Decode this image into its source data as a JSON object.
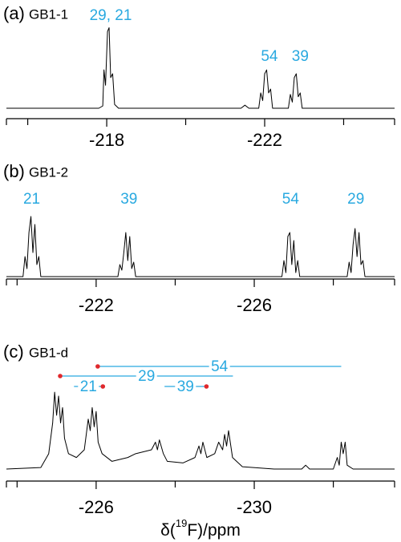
{
  "chart_data": [
    {
      "type": "line",
      "label": "(a)",
      "title": "GB1-1",
      "color": "#000000",
      "label_color": "#29a9e0",
      "xlim": [
        -215.46,
        -225.29
      ],
      "ylim": [
        0,
        115
      ],
      "xticks": [
        -218,
        -222
      ],
      "minor_xticks": [
        -216,
        -220,
        -224
      ],
      "x": [
        -215.46,
        -217.8,
        -217.9,
        -217.93,
        -217.97,
        -218.02,
        -218.06,
        -218.1,
        -218.15,
        -218.2,
        -218.3,
        -221.4,
        -221.5,
        -221.6,
        -221.85,
        -221.9,
        -221.95,
        -222.0,
        -222.05,
        -222.1,
        -222.15,
        -222.2,
        -222.6,
        -222.65,
        -222.7,
        -222.75,
        -222.8,
        -222.85,
        -222.9,
        -222.95,
        -225.29
      ],
      "values": [
        0,
        0,
        3,
        50,
        30,
        100,
        105,
        40,
        45,
        5,
        0,
        0,
        4,
        0,
        0,
        20,
        10,
        45,
        50,
        20,
        25,
        0,
        0,
        18,
        8,
        40,
        45,
        15,
        20,
        0,
        0
      ],
      "peak_labels": [
        {
          "text": "29, 21",
          "x": -218.1
        },
        {
          "text": "54",
          "x": -222.12
        },
        {
          "text": "39",
          "x": -222.9
        }
      ]
    },
    {
      "type": "line",
      "label": "(b)",
      "title": "GB1-2",
      "color": "#000000",
      "label_color": "#29a9e0",
      "xlim": [
        -219.73,
        -229.55
      ],
      "ylim": [
        0,
        100
      ],
      "xticks": [
        -222,
        -226
      ],
      "minor_xticks": [
        -220,
        -224,
        -228
      ],
      "x": [
        -219.73,
        -220.15,
        -220.2,
        -220.25,
        -220.3,
        -220.35,
        -220.4,
        -220.45,
        -220.5,
        -220.55,
        -220.6,
        -222.55,
        -222.6,
        -222.65,
        -222.7,
        -222.75,
        -222.8,
        -222.85,
        -222.9,
        -222.95,
        -223.0,
        -226.7,
        -226.75,
        -226.8,
        -226.85,
        -226.9,
        -226.95,
        -227.0,
        -227.05,
        -227.1,
        -227.15,
        -228.35,
        -228.4,
        -228.45,
        -228.5,
        -228.55,
        -228.6,
        -228.65,
        -228.7,
        -228.75,
        -228.8,
        -229.55
      ],
      "values": [
        0,
        0,
        25,
        10,
        55,
        75,
        30,
        65,
        15,
        25,
        0,
        0,
        15,
        8,
        30,
        55,
        20,
        50,
        10,
        18,
        0,
        0,
        20,
        5,
        50,
        55,
        15,
        45,
        5,
        20,
        0,
        0,
        18,
        5,
        40,
        60,
        25,
        55,
        15,
        20,
        0,
        0
      ],
      "peak_labels": [
        {
          "text": "21",
          "x": -220.37
        },
        {
          "text": "39",
          "x": -222.83
        },
        {
          "text": "54",
          "x": -226.92
        },
        {
          "text": "29",
          "x": -228.57
        }
      ]
    },
    {
      "type": "line",
      "label": "(c)",
      "title": "GB1-d",
      "color": "#000000",
      "label_color": "#29a9e0",
      "dot_color": "#e0282c",
      "xlim": [
        -223.73,
        -233.55
      ],
      "ylim": [
        0,
        120
      ],
      "xticks": [
        -226,
        -230
      ],
      "minor_xticks": [
        -224,
        -228,
        -232
      ],
      "xlabel": {
        "pre": "δ(",
        "sup": "19",
        "post": "F)/ppm"
      },
      "x": [
        -223.73,
        -224.6,
        -224.8,
        -224.9,
        -224.95,
        -225.0,
        -225.05,
        -225.1,
        -225.15,
        -225.2,
        -225.3,
        -225.5,
        -225.7,
        -225.8,
        -225.85,
        -225.9,
        -225.95,
        -226.0,
        -226.05,
        -226.15,
        -226.4,
        -226.8,
        -227.0,
        -227.4,
        -227.5,
        -227.55,
        -227.6,
        -227.7,
        -227.8,
        -228.2,
        -228.5,
        -228.6,
        -228.65,
        -228.7,
        -228.8,
        -229.0,
        -229.1,
        -229.2,
        -229.25,
        -229.3,
        -229.35,
        -229.45,
        -229.7,
        -230.5,
        -231.2,
        -231.3,
        -231.4,
        -232.0,
        -232.1,
        -232.15,
        -232.2,
        -232.25,
        -232.3,
        -232.35,
        -232.5,
        -233.55
      ],
      "values": [
        0,
        2,
        20,
        60,
        100,
        70,
        95,
        60,
        80,
        40,
        20,
        15,
        25,
        65,
        50,
        80,
        55,
        75,
        35,
        20,
        10,
        15,
        20,
        25,
        35,
        25,
        38,
        20,
        10,
        8,
        15,
        30,
        20,
        35,
        15,
        20,
        35,
        25,
        45,
        30,
        50,
        15,
        3,
        0,
        0,
        5,
        0,
        0,
        15,
        5,
        35,
        20,
        35,
        5,
        0,
        0
      ],
      "correlations": [
        {
          "text": "54",
          "from": -226.04,
          "to": -232.2,
          "dot": -226.04
        },
        {
          "text": "29",
          "from": -225.09,
          "to": -229.46,
          "dot": -225.09
        },
        {
          "text": "21",
          "from": -225.44,
          "to": -226.17,
          "dot": -226.17
        },
        {
          "text": "39",
          "from": -227.73,
          "to": -228.79,
          "dot": -228.79
        }
      ]
    }
  ]
}
